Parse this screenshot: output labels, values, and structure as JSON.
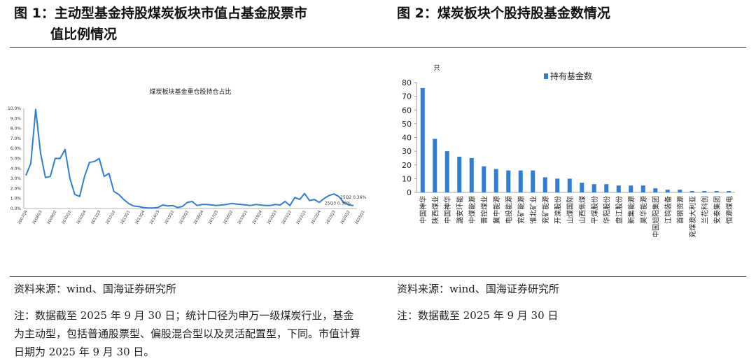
{
  "figures": {
    "left": {
      "title_line1": "图 1：主动型基金持股煤炭板块市值占基金股票市",
      "title_line2": "值比例情况",
      "source": "资料来源：wind、国海证券研究所",
      "note": "注：数据截至 2025 年 9 月 30 日；统计口径为申万一级煤炭行业，基金为主动型，包括普通股票型、偏股混合型以及灵活配置型，下同。市值计算日期为 2025 年 9 月 30 日。"
    },
    "right": {
      "title": "图 2：煤炭板块个股持股基金数情况",
      "source": "资料来源：wind、国海证券研究所",
      "note": "注：数据截至 2025 年 9 月 30 日"
    }
  },
  "chart_data": [
    {
      "type": "line",
      "title": "煤炭板块基金重仓股持仓占比",
      "xlabel": "",
      "ylabel": "",
      "ylim": [
        0,
        10
      ],
      "y_ticks": [
        "0.0%",
        "1.0%",
        "2.0%",
        "3.0%",
        "4.0%",
        "5.0%",
        "6.0%",
        "7.0%",
        "8.0%",
        "9.0%",
        "10.0%"
      ],
      "x_tick_labels": [
        "2007Q4",
        "2008Q3",
        "2009Q2",
        "2010Q1",
        "2010Q4",
        "2011Q3",
        "2012Q2",
        "2013Q1",
        "2013Q4",
        "2014Q3",
        "2015Q2",
        "2016Q1",
        "2016Q4",
        "2017Q3",
        "2018Q2",
        "2019Q1",
        "2019Q4",
        "2020Q3",
        "2021Q2",
        "2022Q1",
        "2022Q4",
        "2023Q3",
        "2024Q2",
        "2025Q1"
      ],
      "series": [
        {
          "color": "#2e7fd4",
          "values": [
            3.3,
            4.5,
            9.9,
            5.5,
            3.1,
            3.2,
            5.0,
            5.0,
            5.9,
            3.0,
            1.4,
            1.2,
            3.2,
            4.6,
            4.7,
            5.0,
            3.2,
            3.5,
            1.7,
            1.4,
            0.9,
            0.5,
            0.25,
            0.2,
            0.1,
            0.05,
            0.05,
            0.1,
            0.35,
            0.25,
            0.3,
            0.1,
            0.2,
            0.6,
            0.7,
            0.3,
            0.4,
            0.4,
            0.35,
            0.3,
            0.35,
            0.4,
            0.5,
            0.45,
            0.4,
            0.35,
            0.3,
            0.4,
            0.35,
            0.3,
            0.3,
            0.4,
            0.35,
            0.7,
            0.3,
            1.1,
            0.9,
            1.5,
            0.8,
            0.9,
            0.6,
            1.0,
            1.3,
            1.45,
            1.2,
            0.6,
            0.36,
            0.3
          ]
        }
      ],
      "annotations": [
        "25Q2 0.36%",
        "25Q3 0.30%"
      ],
      "grid": false
    },
    {
      "type": "bar",
      "y_unit": "只",
      "ylim": [
        0,
        80
      ],
      "y_ticks": [
        0,
        10,
        20,
        30,
        40,
        50,
        60,
        70,
        80
      ],
      "legend_position": "top",
      "categories": [
        "中国神华",
        "陕西煤业",
        "中国神华",
        "潞安环能",
        "中煤能源",
        "晋控煤业",
        "冀中能源",
        "电投能源",
        "兖矿能源",
        "淮北矿业",
        "兖矿能源",
        "开滦股份",
        "山煤国际",
        "山西焦煤",
        "平煤股份",
        "华阳股份",
        "盘江股份",
        "新集能源",
        "昊华能源",
        "中国旭阳集团",
        "江钨装备",
        "首钢资源",
        "兖煤澳大利亚",
        "兰花科创",
        "安泰集团",
        "恒源煤电"
      ],
      "series": [
        {
          "name": "持有基金数",
          "color": "#2e7fd4",
          "values": [
            76,
            39,
            30,
            26,
            25,
            19,
            17,
            16,
            16,
            16,
            11,
            10,
            10,
            7,
            6,
            6,
            5,
            5,
            5,
            3,
            2,
            2,
            1,
            1,
            1,
            1
          ]
        }
      ]
    }
  ]
}
